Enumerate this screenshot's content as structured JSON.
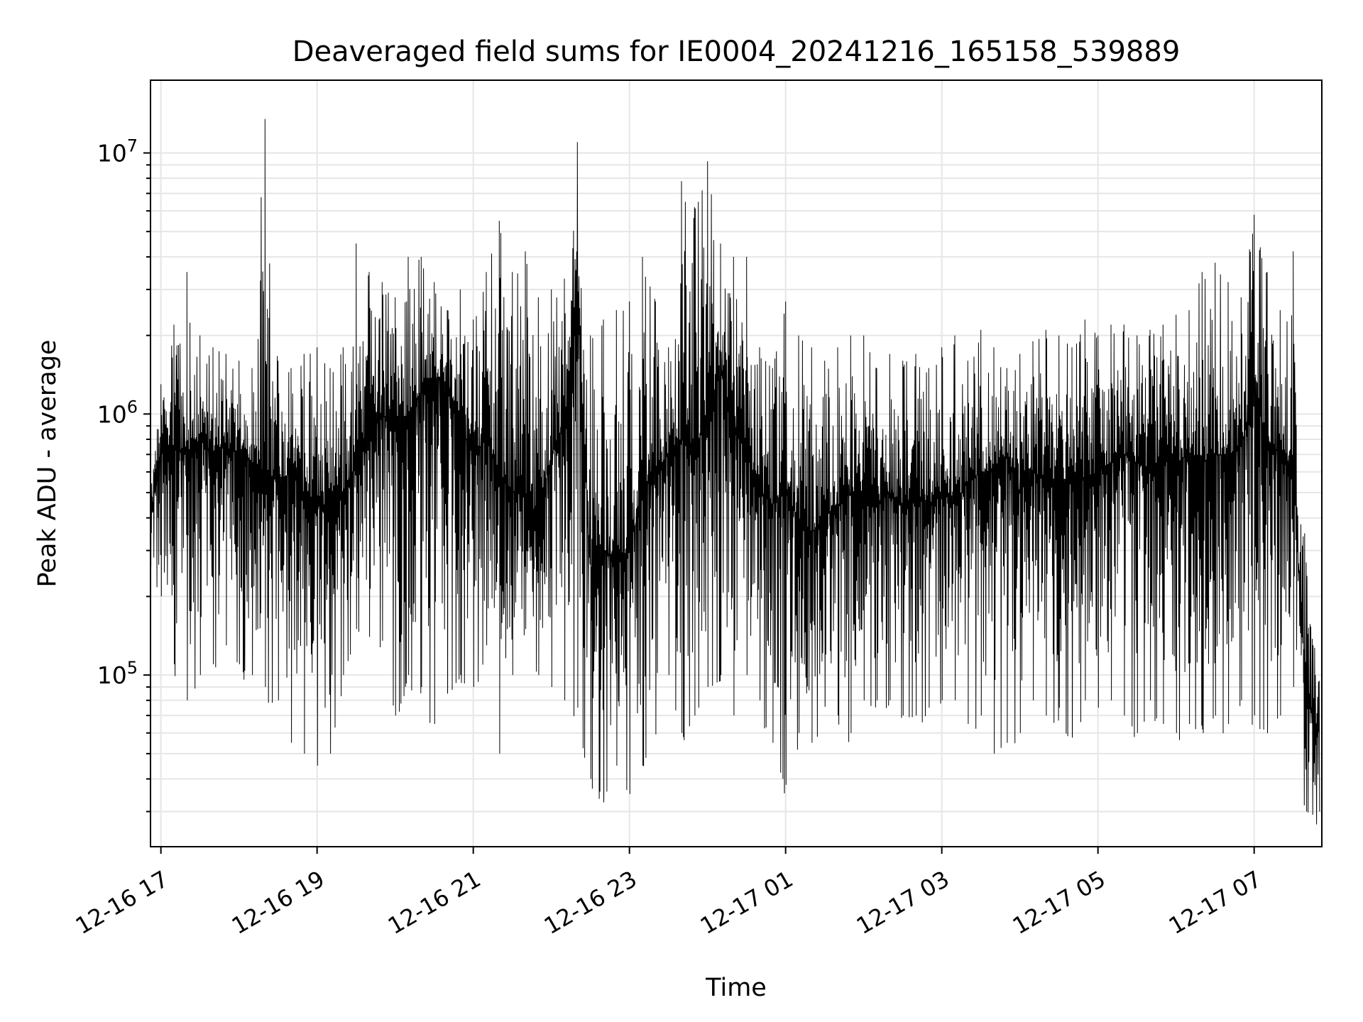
{
  "chart_data": {
    "type": "line",
    "title": "Deaveraged field sums for IE0004_20241216_165158_539889",
    "xlabel": "Time",
    "ylabel": "Peak ADU - average",
    "yscale": "log",
    "ylim": [
      22000,
      19000000
    ],
    "xlim": [
      "2024-12-16 16:52",
      "2024-12-17 07:52"
    ],
    "grid": true,
    "line_color": "#000000",
    "grid_color": "#e6e6e6",
    "x_ticks": [
      {
        "value": "2024-12-16 17:00",
        "label": "12-16 17"
      },
      {
        "value": "2024-12-16 19:00",
        "label": "12-16 19"
      },
      {
        "value": "2024-12-16 21:00",
        "label": "12-16 21"
      },
      {
        "value": "2024-12-16 23:00",
        "label": "12-16 23"
      },
      {
        "value": "2024-12-17 01:00",
        "label": "12-17 01"
      },
      {
        "value": "2024-12-17 03:00",
        "label": "12-17 03"
      },
      {
        "value": "2024-12-17 05:00",
        "label": "12-17 05"
      },
      {
        "value": "2024-12-17 07:00",
        "label": "12-17 07"
      }
    ],
    "y_ticks": [
      {
        "value": 100000,
        "base": "10",
        "exp": "5"
      },
      {
        "value": 1000000,
        "base": "10",
        "exp": "6"
      },
      {
        "value": 10000000,
        "base": "10",
        "exp": "7"
      }
    ],
    "series": [
      {
        "x": [
          "2024-12-16 16:52",
          "2024-12-16 17:00",
          "2024-12-16 17:10",
          "2024-12-16 17:20",
          "2024-12-16 17:30",
          "2024-12-16 17:40",
          "2024-12-16 17:50",
          "2024-12-16 18:00",
          "2024-12-16 18:10",
          "2024-12-16 18:20",
          "2024-12-16 18:30",
          "2024-12-16 18:40",
          "2024-12-16 18:50",
          "2024-12-16 19:00",
          "2024-12-16 19:10",
          "2024-12-16 19:20",
          "2024-12-16 19:30",
          "2024-12-16 19:40",
          "2024-12-16 19:50",
          "2024-12-16 20:00",
          "2024-12-16 20:10",
          "2024-12-16 20:20",
          "2024-12-16 20:30",
          "2024-12-16 20:40",
          "2024-12-16 20:50",
          "2024-12-16 21:00",
          "2024-12-16 21:10",
          "2024-12-16 21:20",
          "2024-12-16 21:30",
          "2024-12-16 21:40",
          "2024-12-16 21:50",
          "2024-12-16 22:00",
          "2024-12-16 22:10",
          "2024-12-16 22:20",
          "2024-12-16 22:30",
          "2024-12-16 22:40",
          "2024-12-16 22:50",
          "2024-12-16 23:00",
          "2024-12-16 23:10",
          "2024-12-16 23:20",
          "2024-12-16 23:30",
          "2024-12-16 23:40",
          "2024-12-16 23:50",
          "2024-12-17 00:00",
          "2024-12-17 00:10",
          "2024-12-17 00:20",
          "2024-12-17 00:30",
          "2024-12-17 00:40",
          "2024-12-17 00:50",
          "2024-12-17 01:00",
          "2024-12-17 01:10",
          "2024-12-17 01:20",
          "2024-12-17 01:30",
          "2024-12-17 01:40",
          "2024-12-17 01:50",
          "2024-12-17 02:00",
          "2024-12-17 02:10",
          "2024-12-17 02:20",
          "2024-12-17 02:30",
          "2024-12-17 02:40",
          "2024-12-17 02:50",
          "2024-12-17 03:00",
          "2024-12-17 03:10",
          "2024-12-17 03:20",
          "2024-12-17 03:30",
          "2024-12-17 03:40",
          "2024-12-17 03:50",
          "2024-12-17 04:00",
          "2024-12-17 04:10",
          "2024-12-17 04:20",
          "2024-12-17 04:30",
          "2024-12-17 04:40",
          "2024-12-17 04:50",
          "2024-12-17 05:00",
          "2024-12-17 05:10",
          "2024-12-17 05:20",
          "2024-12-17 05:30",
          "2024-12-17 05:40",
          "2024-12-17 05:50",
          "2024-12-17 06:00",
          "2024-12-17 06:10",
          "2024-12-17 06:20",
          "2024-12-17 06:30",
          "2024-12-17 06:40",
          "2024-12-17 06:50",
          "2024-12-17 07:00",
          "2024-12-17 07:10",
          "2024-12-17 07:20",
          "2024-12-17 07:30",
          "2024-12-17 07:40",
          "2024-12-17 07:50"
        ],
        "y": [
          400000,
          700000,
          750000,
          700000,
          800000,
          700000,
          750000,
          700000,
          650000,
          600000,
          550000,
          600000,
          500000,
          450000,
          400000,
          500000,
          650000,
          900000,
          1000000,
          900000,
          1000000,
          1200000,
          1400000,
          1300000,
          900000,
          700000,
          800000,
          600000,
          500000,
          500000,
          400000,
          700000,
          900000,
          3000000,
          250000,
          300000,
          280000,
          300000,
          500000,
          600000,
          700000,
          800000,
          700000,
          1000000,
          1500000,
          900000,
          700000,
          500000,
          450000,
          500000,
          400000,
          350000,
          400000,
          450000,
          500000,
          500000,
          450000,
          500000,
          450000,
          500000,
          450000,
          500000,
          450000,
          550000,
          600000,
          600000,
          700000,
          500000,
          600000,
          550000,
          500000,
          600000,
          550000,
          600000,
          650000,
          700000,
          650000,
          600000,
          700000,
          650000,
          700000,
          650000,
          700000,
          700000,
          750000,
          1200000,
          800000,
          700000,
          600000,
          80000,
          60000
        ],
        "y_min": [
          260000,
          200000,
          110000,
          80000,
          100000,
          110000,
          130000,
          110000,
          100000,
          90000,
          80000,
          55000,
          50000,
          45000,
          50000,
          100000,
          150000,
          140000,
          140000,
          70000,
          100000,
          90000,
          65000,
          90000,
          100000,
          90000,
          130000,
          50000,
          100000,
          150000,
          100000,
          90000,
          80000,
          75000,
          40000,
          35000,
          45000,
          35000,
          45000,
          60000,
          100000,
          60000,
          70000,
          90000,
          100000,
          70000,
          100000,
          80000,
          55000,
          38000,
          60000,
          55000,
          80000,
          70000,
          60000,
          80000,
          80000,
          80000,
          70000,
          70000,
          75000,
          80000,
          80000,
          65000,
          70000,
          50000,
          55000,
          60000,
          80000,
          70000,
          75000,
          60000,
          80000,
          75000,
          80000,
          70000,
          60000,
          80000,
          65000,
          60000,
          65000,
          65000,
          70000,
          65000,
          80000,
          70000,
          65000,
          70000,
          90000,
          30000,
          30000
        ],
        "y_max": [
          580000,
          1300000,
          2200000,
          3500000,
          2000000,
          1800000,
          1700000,
          1600000,
          1500000,
          13500000,
          1600000,
          1500000,
          1700000,
          1800000,
          1500000,
          1800000,
          4500000,
          3500000,
          3200000,
          2800000,
          4000000,
          4000000,
          3200000,
          2500000,
          3000000,
          2300000,
          3500000,
          5500000,
          3500000,
          4200000,
          2800000,
          3000000,
          3300000,
          11000000,
          2000000,
          2300000,
          2500000,
          2700000,
          4000000,
          2700000,
          1800000,
          7800000,
          6200000,
          9300000,
          4500000,
          4000000,
          4000000,
          1800000,
          1500000,
          2700000,
          2000000,
          1800000,
          1600000,
          1800000,
          2000000,
          2000000,
          1500000,
          1700000,
          1600000,
          1700000,
          1500000,
          1800000,
          2000000,
          1600000,
          2100000,
          1800000,
          1500000,
          1700000,
          1900000,
          2100000,
          2000000,
          1800000,
          2300000,
          2000000,
          2200000,
          2200000,
          2000000,
          2100000,
          2200000,
          2400000,
          2500000,
          3500000,
          3800000,
          3200000,
          2800000,
          5800000,
          3500000,
          2500000,
          4200000,
          270000,
          95000
        ]
      }
    ]
  }
}
